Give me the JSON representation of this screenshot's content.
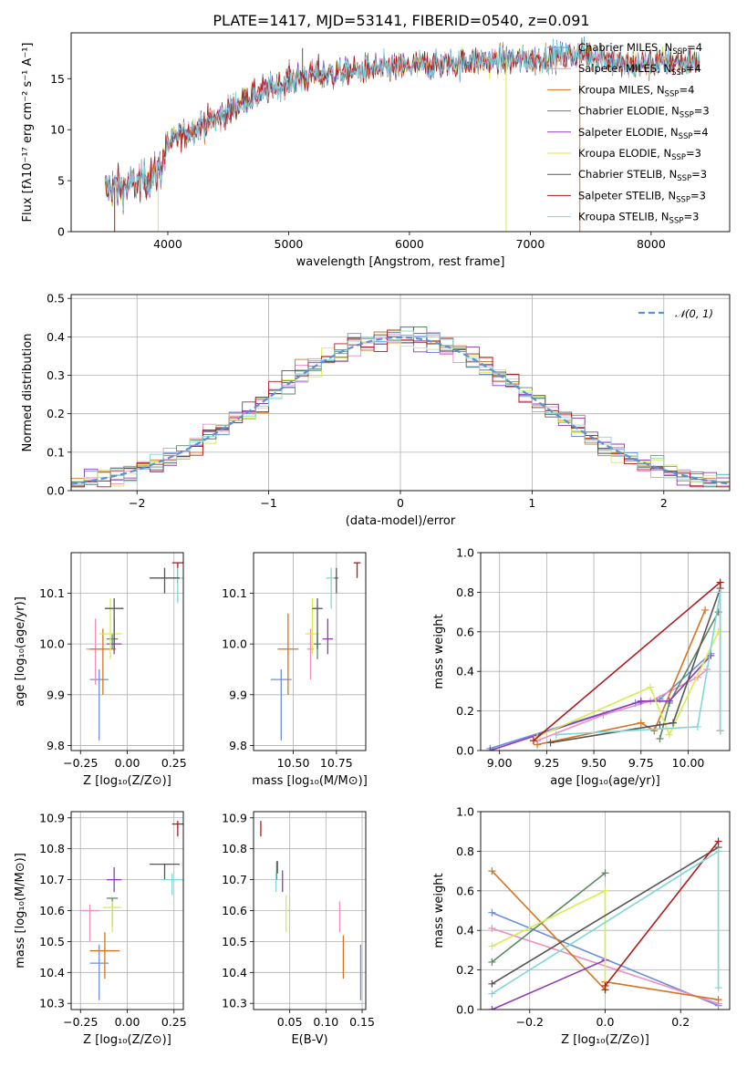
{
  "figure": {
    "title": "PLATE=1417, MJD=53141, FIBERID=0540, z=0.091"
  },
  "colors": {
    "chabrier_miles": "#6b8fdc",
    "salpeter_miles": "#ee8ec3",
    "kroupa_miles": "#d9731f",
    "chabrier_elodie": "#5a8a63",
    "salpeter_elodie": "#8e3bb5",
    "kroupa_elodie": "#d6ee4c",
    "chabrier_stelib": "#555555",
    "salpeter_stelib": "#b01b1b",
    "kroupa_stelib": "#7fd8d8",
    "normal": "#5b8fd6"
  },
  "chart_data": [
    {
      "id": "spectrum",
      "type": "line",
      "title": "PLATE=1417, MJD=53141, FIBERID=0540, z=0.091",
      "xlabel": "wavelength [Angstrom, rest frame]",
      "ylabel": "Flux [fλ10⁻¹⁷ erg cm⁻² s⁻¹ A⁻¹]",
      "xlim": [
        3200,
        8650
      ],
      "ylim": [
        0,
        19.5
      ],
      "xticks": [
        "4000",
        "5000",
        "6000",
        "7000",
        "8000"
      ],
      "yticks": [
        "0",
        "5",
        "10",
        "15"
      ],
      "legend": "upper right",
      "continuum": {
        "x": [
          3480,
          3600,
          3700,
          3800,
          3900,
          3950,
          4000,
          4100,
          4200,
          4300,
          4400,
          4500,
          4600,
          4700,
          4800,
          5000,
          5200,
          5400,
          5600,
          5800,
          6000,
          6200,
          6400,
          6600,
          6800,
          7000,
          7200,
          7400,
          7600,
          7800,
          8000,
          8200,
          8400
        ],
        "y": [
          4.2,
          4.4,
          4.6,
          5.0,
          5.6,
          6.6,
          8.5,
          9.4,
          10.0,
          10.6,
          11.0,
          11.8,
          12.6,
          13.3,
          13.8,
          14.8,
          15.4,
          15.5,
          15.8,
          16.0,
          16.2,
          16.4,
          16.6,
          16.8,
          16.9,
          16.8,
          17.1,
          17.4,
          17.2,
          16.2,
          16.5,
          16.6,
          16.5
        ]
      },
      "series": [
        {
          "name": "Chabrier MILES, N_SSP=4",
          "legend_main": "Chabrier MILES, N",
          "legend_sub": "SSP",
          "legend_tail": "=4",
          "color": "#6b8fdc"
        },
        {
          "name": "Salpeter MILES, N_SSP=4",
          "legend_main": "Salpeter MILES, N",
          "legend_sub": "SSP",
          "legend_tail": "=4",
          "color": "#ee8ec3"
        },
        {
          "name": "Kroupa MILES, N_SSP=4",
          "legend_main": "Kroupa MILES, N",
          "legend_sub": "SSP",
          "legend_tail": "=4",
          "color": "#d9731f"
        },
        {
          "name": "Chabrier ELODIE, N_SSP=3",
          "legend_main": "Chabrier ELODIE, N",
          "legend_sub": "SSP",
          "legend_tail": "=3",
          "color": "#5a8a63"
        },
        {
          "name": "Salpeter ELODIE, N_SSP=4",
          "legend_main": "Salpeter ELODIE, N",
          "legend_sub": "SSP",
          "legend_tail": "=4",
          "color": "#8e3bb5"
        },
        {
          "name": "Kroupa ELODIE, N_SSP=3",
          "legend_main": "Kroupa ELODIE, N",
          "legend_sub": "SSP",
          "legend_tail": "=3",
          "color": "#d6ee4c"
        },
        {
          "name": "Chabrier STELIB, N_SSP=3",
          "legend_main": "Chabrier STELIB, N",
          "legend_sub": "SSP",
          "legend_tail": "=3",
          "color": "#555555"
        },
        {
          "name": "Salpeter STELIB, N_SSP=3",
          "legend_main": "Salpeter STELIB, N",
          "legend_sub": "SSP",
          "legend_tail": "=3",
          "color": "#b01b1b"
        },
        {
          "name": "Kroupa STELIB, N_SSP=3",
          "legend_main": "Kroupa STELIB, N",
          "legend_sub": "SSP",
          "legend_tail": "=3",
          "color": "#7fd8d8"
        }
      ]
    },
    {
      "id": "residuals",
      "type": "histogram",
      "xlabel": "(data-model)/error",
      "ylabel": "Normed distribution",
      "xlim": [
        -2.5,
        2.5
      ],
      "ylim": [
        0,
        0.51
      ],
      "xticks": [
        "−2",
        "−1",
        "0",
        "1",
        "2"
      ],
      "yticks": [
        "0.0",
        "0.1",
        "0.2",
        "0.3",
        "0.4",
        "0.5"
      ],
      "grid": true,
      "legend": "upper right",
      "legend_label": "𝒩(0, 1)",
      "bin_width": 0.1,
      "bin_start": -2.5
    },
    {
      "id": "age_vs_z",
      "type": "errorbar",
      "xlabel": "Z [log₁₀(Z/Z⊙)]",
      "ylabel": "age  [log₁₀(age/yr)]",
      "xlim": [
        -0.3,
        0.3
      ],
      "ylim": [
        9.79,
        10.18
      ],
      "xticks": [
        "−0.25",
        "0.00",
        "0.25"
      ],
      "yticks": [
        "9.8",
        "9.9",
        "10.0",
        "10.1"
      ],
      "grid": true,
      "points": [
        {
          "series": "Chabrier MILES",
          "x": -0.15,
          "xerr": 0.05,
          "y": 9.93,
          "ylo": 9.81,
          "yhi": 9.95
        },
        {
          "series": "Salpeter MILES",
          "x": -0.17,
          "xerr": 0.05,
          "y": 9.99,
          "ylo": 9.92,
          "yhi": 10.05
        },
        {
          "series": "Kroupa MILES",
          "x": -0.13,
          "xerr": 0.07,
          "y": 9.99,
          "ylo": 9.9,
          "yhi": 10.03
        },
        {
          "series": "Chabrier ELODIE",
          "x": -0.08,
          "xerr": 0.03,
          "y": 10.01,
          "ylo": 9.99,
          "yhi": 10.02
        },
        {
          "series": "Salpeter ELODIE",
          "x": -0.07,
          "xerr": 0.04,
          "y": 10.0,
          "ylo": 9.98,
          "yhi": 10.05
        },
        {
          "series": "Kroupa ELODIE",
          "x": -0.09,
          "xerr": 0.06,
          "y": 10.02,
          "ylo": 9.97,
          "yhi": 10.09
        },
        {
          "series": "Chabrier STELIB",
          "x": -0.07,
          "xerr": 0.05,
          "y": 10.07,
          "ylo": 9.99,
          "yhi": 10.09
        },
        {
          "series": "Salpeter STELIB",
          "x": 0.27,
          "xerr": 0.03,
          "y": 10.16,
          "ylo": 10.12,
          "yhi": 10.16
        },
        {
          "series": "Kroupa STELIB",
          "x": 0.27,
          "xerr": 0.03,
          "y": 10.13,
          "ylo": 10.08,
          "yhi": 10.15
        },
        {
          "series": "Chabrier STELIB",
          "x": 0.2,
          "xerr": 0.08,
          "y": 10.13,
          "ylo": 10.1,
          "yhi": 10.15
        }
      ]
    },
    {
      "id": "age_vs_mass",
      "type": "errorbar",
      "xlabel": "mass [log₁₀(M/M⊙)]",
      "ylabel": "",
      "xlim": [
        10.27,
        10.92
      ],
      "ylim": [
        9.79,
        10.18
      ],
      "xticks": [
        "10.50",
        "10.75"
      ],
      "yticks": [
        "9.8",
        "9.9",
        "10.0",
        "10.1"
      ],
      "grid": true,
      "points": [
        {
          "series": "Chabrier MILES",
          "x": 10.43,
          "xerr": 0.06,
          "y": 9.93,
          "ylo": 9.81,
          "yhi": 9.95
        },
        {
          "series": "Salpeter MILES",
          "x": 10.6,
          "xerr": 0.02,
          "y": 9.99,
          "ylo": 9.93,
          "yhi": 10.03
        },
        {
          "series": "Kroupa MILES",
          "x": 10.47,
          "xerr": 0.06,
          "y": 9.99,
          "ylo": 9.9,
          "yhi": 10.06
        },
        {
          "series": "Chabrier ELODIE",
          "x": 10.64,
          "xerr": 0.02,
          "y": 10.0,
          "ylo": 9.97,
          "yhi": 10.02
        },
        {
          "series": "Salpeter ELODIE",
          "x": 10.7,
          "xerr": 0.03,
          "y": 10.01,
          "ylo": 9.98,
          "yhi": 10.05
        },
        {
          "series": "Kroupa ELODIE",
          "x": 10.61,
          "xerr": 0.04,
          "y": 10.02,
          "ylo": 9.98,
          "yhi": 10.09
        },
        {
          "series": "Chabrier STELIB",
          "x": 10.64,
          "xerr": 0.03,
          "y": 10.07,
          "ylo": 9.99,
          "yhi": 10.09
        },
        {
          "series": "Salpeter STELIB",
          "x": 10.87,
          "xerr": 0.02,
          "y": 10.16,
          "ylo": 10.13,
          "yhi": 10.16
        },
        {
          "series": "Kroupa STELIB",
          "x": 10.72,
          "xerr": 0.03,
          "y": 10.13,
          "ylo": 10.07,
          "yhi": 10.15
        },
        {
          "series": "Chabrier STELIB",
          "x": 10.75,
          "xerr": 0.01,
          "y": 10.13,
          "ylo": 10.1,
          "yhi": 10.15
        }
      ]
    },
    {
      "id": "weight_vs_age",
      "type": "line",
      "xlabel": "age  [log₁₀(age/yr)]",
      "ylabel": "mass weight",
      "xlim": [
        8.9,
        10.22
      ],
      "ylim": [
        0,
        1.0
      ],
      "xticks": [
        "9.00",
        "9.25",
        "9.50",
        "9.75",
        "10.00"
      ],
      "yticks": [
        "0.0",
        "0.2",
        "0.4",
        "0.6",
        "0.8",
        "1.0"
      ],
      "grid": true,
      "series": [
        {
          "name": "Chabrier MILES",
          "x": [
            8.95,
            9.72,
            9.85,
            10.12
          ],
          "y": [
            0.01,
            0.24,
            0.26,
            0.49
          ]
        },
        {
          "name": "Salpeter MILES",
          "x": [
            9.2,
            9.55,
            9.8,
            10.05,
            10.1
          ],
          "y": [
            0.05,
            0.18,
            0.25,
            0.37,
            0.41
          ]
        },
        {
          "name": "Kroupa MILES",
          "x": [
            9.2,
            9.75,
            9.82,
            10.09
          ],
          "y": [
            0.03,
            0.14,
            0.1,
            0.71
          ]
        },
        {
          "name": "Chabrier ELODIE",
          "x": [
            9.85,
            9.9,
            10.16
          ],
          "y": [
            0.06,
            0.24,
            0.7
          ]
        },
        {
          "name": "Salpeter ELODIE",
          "x": [
            8.95,
            9.75,
            9.9,
            10.12
          ],
          "y": [
            0.0,
            0.25,
            0.25,
            0.48
          ]
        },
        {
          "name": "Kroupa ELODIE",
          "x": [
            9.2,
            9.8,
            9.9,
            10.16
          ],
          "y": [
            0.07,
            0.32,
            0.08,
            0.6
          ]
        },
        {
          "name": "Chabrier STELIB",
          "x": [
            9.27,
            9.85,
            9.92,
            10.17
          ],
          "y": [
            0.04,
            0.13,
            0.14,
            0.82
          ]
        },
        {
          "name": "Salpeter STELIB",
          "x": [
            9.18,
            10.17,
            10.17
          ],
          "y": [
            0.05,
            0.85,
            0.1
          ]
        },
        {
          "name": "Kroupa STELIB",
          "x": [
            9.3,
            10.05,
            10.17,
            10.17
          ],
          "y": [
            0.08,
            0.12,
            0.8,
            0.1
          ]
        }
      ]
    },
    {
      "id": "mass_vs_z",
      "type": "errorbar",
      "xlabel": "Z [log₁₀(Z/Z⊙)]",
      "ylabel": "mass [log₁₀(M/M⊙)]",
      "xlim": [
        -0.3,
        0.3
      ],
      "ylim": [
        10.28,
        10.92
      ],
      "xticks": [
        "−0.25",
        "0.00",
        "0.25"
      ],
      "yticks": [
        "10.3",
        "10.4",
        "10.5",
        "10.6",
        "10.7",
        "10.8",
        "10.9"
      ],
      "grid": true,
      "points": [
        {
          "series": "Chabrier MILES",
          "x": -0.15,
          "xerr": 0.05,
          "y": 10.43,
          "ylo": 10.31,
          "yhi": 10.49
        },
        {
          "series": "Salpeter MILES",
          "x": -0.2,
          "xerr": 0.05,
          "y": 10.6,
          "ylo": 10.5,
          "yhi": 10.62
        },
        {
          "series": "Kroupa MILES",
          "x": -0.12,
          "xerr": 0.08,
          "y": 10.47,
          "ylo": 10.38,
          "yhi": 10.53
        },
        {
          "series": "Chabrier ELODIE",
          "x": -0.08,
          "xerr": 0.03,
          "y": 10.64,
          "ylo": 10.55,
          "yhi": 10.64
        },
        {
          "series": "Salpeter ELODIE",
          "x": -0.07,
          "xerr": 0.04,
          "y": 10.7,
          "ylo": 10.66,
          "yhi": 10.74
        },
        {
          "series": "Kroupa ELODIE",
          "x": -0.08,
          "xerr": 0.05,
          "y": 10.61,
          "ylo": 10.53,
          "yhi": 10.63
        },
        {
          "series": "Chabrier STELIB",
          "x": 0.2,
          "xerr": 0.08,
          "y": 10.75,
          "ylo": 10.7,
          "yhi": 10.75
        },
        {
          "series": "Salpeter STELIB",
          "x": 0.27,
          "xerr": 0.03,
          "y": 10.88,
          "ylo": 10.84,
          "yhi": 10.89
        },
        {
          "series": "Kroupa STELIB",
          "x": 0.24,
          "xerr": 0.06,
          "y": 10.7,
          "ylo": 10.65,
          "yhi": 10.72
        }
      ]
    },
    {
      "id": "mass_vs_ebv",
      "type": "errorbar",
      "xlabel": "E(B-V)",
      "ylabel": "",
      "xlim": [
        0.0,
        0.155
      ],
      "ylim": [
        10.28,
        10.92
      ],
      "xticks": [
        "0.05",
        "0.10",
        "0.15"
      ],
      "yticks": [
        "10.3",
        "10.4",
        "10.5",
        "10.6",
        "10.7",
        "10.8",
        "10.9"
      ],
      "grid": true,
      "points": [
        {
          "series": "Chabrier MILES",
          "x": 0.148,
          "ylo": 10.31,
          "yhi": 10.49
        },
        {
          "series": "Salpeter MILES",
          "x": 0.119,
          "ylo": 10.53,
          "yhi": 10.63
        },
        {
          "series": "Kroupa MILES",
          "x": 0.124,
          "ylo": 10.38,
          "yhi": 10.52
        },
        {
          "series": "Chabrier ELODIE",
          "x": 0.032,
          "ylo": 10.7,
          "yhi": 10.76
        },
        {
          "series": "Salpeter ELODIE",
          "x": 0.04,
          "ylo": 10.66,
          "yhi": 10.73
        },
        {
          "series": "Kroupa ELODIE",
          "x": 0.045,
          "ylo": 10.53,
          "yhi": 10.65
        },
        {
          "series": "Chabrier STELIB",
          "x": 0.033,
          "ylo": 10.72,
          "yhi": 10.76
        },
        {
          "series": "Salpeter STELIB",
          "x": 0.01,
          "ylo": 10.84,
          "yhi": 10.89
        },
        {
          "series": "Kroupa STELIB",
          "x": 0.031,
          "ylo": 10.66,
          "yhi": 10.72
        }
      ]
    },
    {
      "id": "weight_vs_z",
      "type": "line",
      "xlabel": "Z [log₁₀(Z/Z⊙)]",
      "ylabel": "mass weight",
      "xlim": [
        -0.33,
        0.33
      ],
      "ylim": [
        0,
        1.0
      ],
      "xticks": [
        "−0.2",
        "0.0",
        "0.2"
      ],
      "yticks": [
        "0.0",
        "0.2",
        "0.4",
        "0.6",
        "0.8",
        "1.0"
      ],
      "grid": true,
      "series": [
        {
          "name": "Chabrier MILES",
          "x": [
            -0.3,
            0.3
          ],
          "y": [
            0.49,
            0.02
          ]
        },
        {
          "name": "Salpeter MILES",
          "x": [
            -0.3,
            0.3
          ],
          "y": [
            0.41,
            0.03
          ]
        },
        {
          "name": "Kroupa MILES",
          "x": [
            -0.3,
            0.0,
            0.0,
            0.3
          ],
          "y": [
            0.7,
            0.1,
            0.14,
            0.05
          ]
        },
        {
          "name": "Chabrier ELODIE",
          "x": [
            -0.3,
            0.0
          ],
          "y": [
            0.24,
            0.69
          ]
        },
        {
          "name": "Salpeter ELODIE",
          "x": [
            -0.3,
            0.0
          ],
          "y": [
            0.0,
            0.25
          ]
        },
        {
          "name": "Kroupa ELODIE",
          "x": [
            -0.3,
            0.0,
            0.0
          ],
          "y": [
            0.32,
            0.6,
            0.1
          ]
        },
        {
          "name": "Chabrier STELIB",
          "x": [
            -0.3,
            0.3
          ],
          "y": [
            0.13,
            0.82
          ]
        },
        {
          "name": "Salpeter STELIB",
          "x": [
            0.0,
            0.0,
            0.3
          ],
          "y": [
            0.1,
            0.12,
            0.85
          ]
        },
        {
          "name": "Kroupa STELIB",
          "x": [
            -0.3,
            0.3,
            0.3
          ],
          "y": [
            0.08,
            0.8,
            0.11
          ]
        }
      ]
    }
  ]
}
